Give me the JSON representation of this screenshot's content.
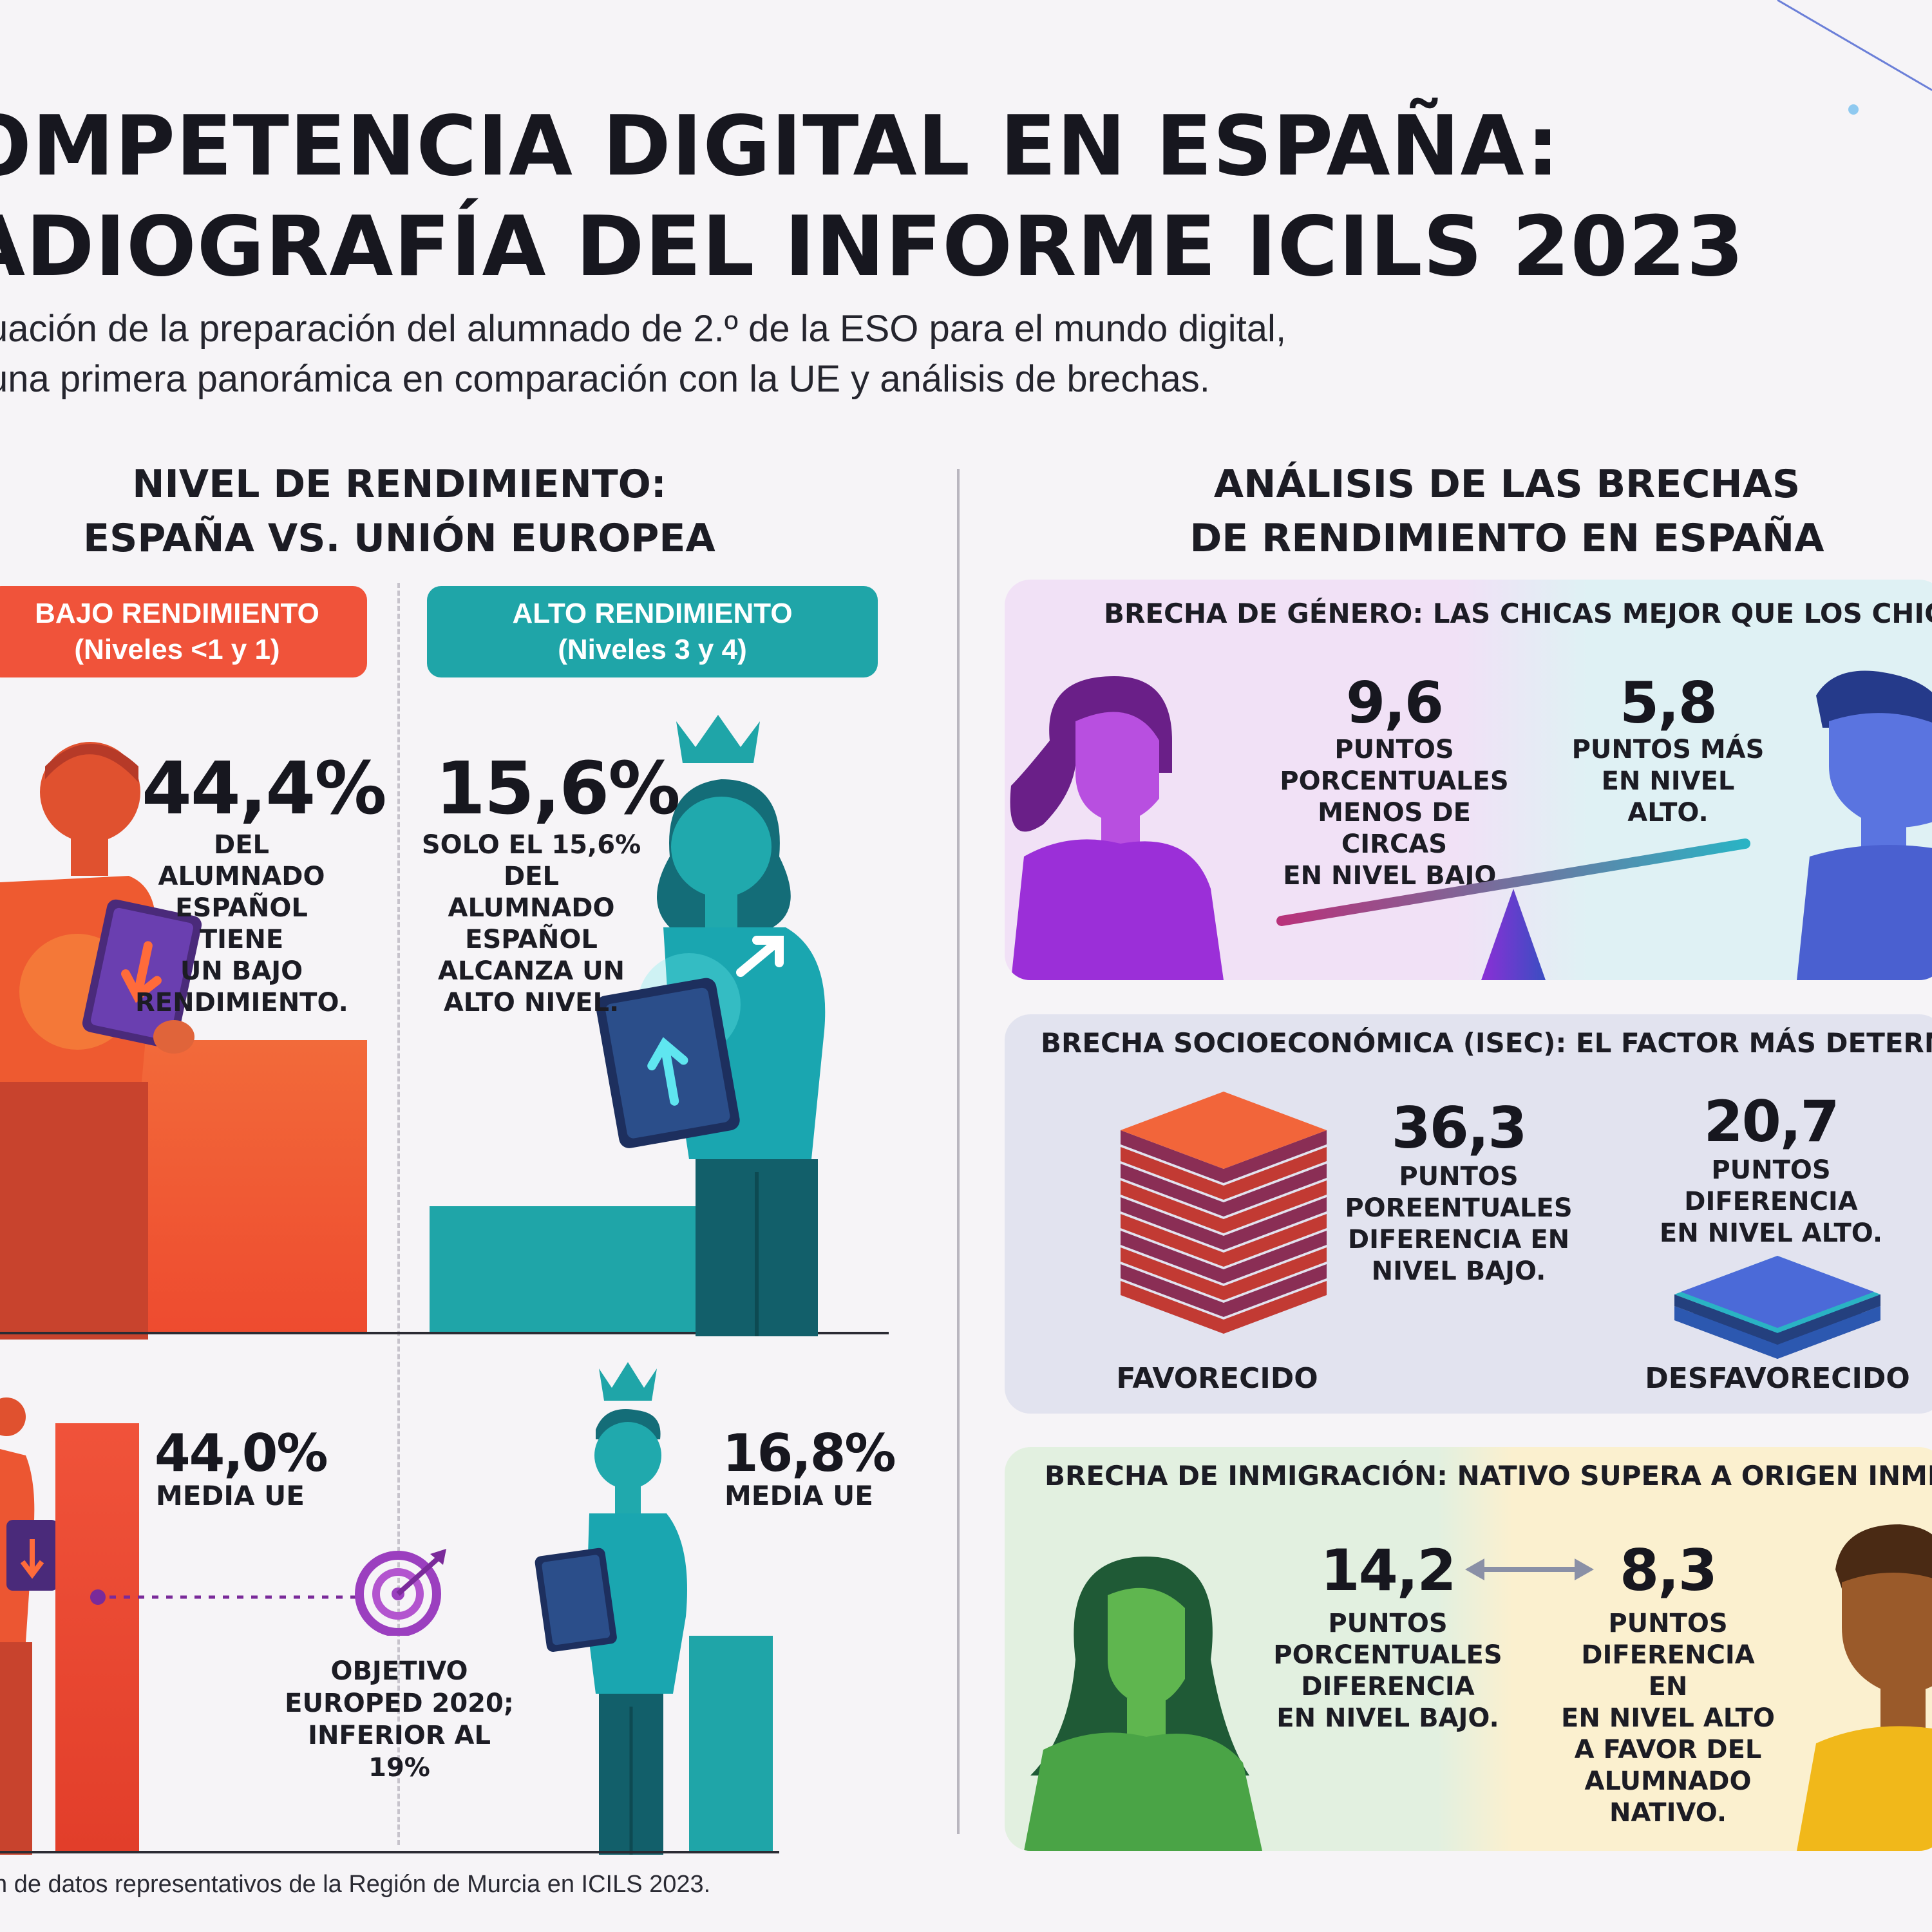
{
  "header": {
    "title_line1": "OMPETENCIA DIGITAL EN ESPAÑA:",
    "title_line2": "ADIOGRAFÍA DEL INFORME ICILS 2023",
    "subtitle_line1": "uación de la preparación del alumnado de 2.º de la ESO para el mundo digital,",
    "subtitle_line2": "una primera panorámica en comparación con la UE y análisis de brechas."
  },
  "left": {
    "title_line1": "NIVEL DE RENDIMIENTO:",
    "title_line2": "ESPAÑA VS. UNIÓN EUROPEA",
    "low_badge": {
      "line1": "BAJO RENDIMIENTO",
      "line2": "(Niveles <1 y 1)",
      "color": "#f0533a"
    },
    "high_badge": {
      "line1": "ALTO RENDIMIENTO",
      "line2": "(Niveles 3 y 4)",
      "color": "#1fa5a8"
    },
    "spain_low": {
      "value": "44,4%",
      "text": [
        "DEL ALUMNADO",
        "ESPAÑOL TIENE",
        "UN BAJO",
        "RENDIMIENTO."
      ]
    },
    "spain_high": {
      "value": "15,6%",
      "text": [
        "SOLO EL 15,6%",
        "DEL ALUMNADO",
        "ESPAÑOL",
        "ALCANZA UN",
        "ALTO NIVEL."
      ]
    },
    "eu_low": {
      "value": "44,0%",
      "label": "MEDIA UE"
    },
    "eu_high": {
      "value": "16,8%",
      "label": "MEDIA UE"
    },
    "target": {
      "text": [
        "OBJETIVO",
        "EUROPED 2020;",
        "INFERIOR AL 19%"
      ]
    }
  },
  "right": {
    "title_line1": "ANÁLISIS DE LAS BRECHAS",
    "title_line2": "DE RENDIMIENTO EN ESPAÑA",
    "gender": {
      "title": "BRECHA DE GÉNERO: LAS CHICAS MEJOR QUE LOS CHICOS",
      "girls_value": "9,6",
      "girls_text": [
        "PUNTOS",
        "PORCENTUALES",
        "MENOS DE CIRCAS",
        "EN NIVEL BAJO."
      ],
      "boys_value": "5,8",
      "boys_text": [
        "PUNTOS MÁS",
        "EN NIVEL",
        "ALTO."
      ]
    },
    "socio": {
      "title": "BRECHA SOCIOECONÓMICA (ISEC): EL FACTOR MÁS DETERMINANTE",
      "low_value": "36,3",
      "low_text": [
        "PUNTOS",
        "POREENTUALES",
        "DIFERENCIA EN",
        "NIVEL BAJO."
      ],
      "high_value": "20,7",
      "high_text": [
        "PUNTOS DIFERENCIA",
        "EN NIVEL ALTO."
      ],
      "favored_label": "FAVORECIDO",
      "unfavored_label": "DESFAVORECIDO"
    },
    "immigration": {
      "title": "BRECHA DE INMIGRACIÓN: NATIVO SUPERA A ORIGEN INMIGRANTE",
      "left_value": "14,2",
      "left_text": [
        "PUNTOS",
        "PORCENTUALES",
        "DIFERENCIA",
        "EN NIVEL BAJO."
      ],
      "right_value": "8,3",
      "right_text": [
        "PUNTOS",
        "DIFERENCIA",
        "EN",
        "EN NIVEL ALTO",
        "A FAVOR DEL",
        "ALUMNADO",
        "NATIVO."
      ]
    }
  },
  "footer": {
    "note": "n de datos representativos de la Región de Murcia en ICILS 2023."
  },
  "colors": {
    "orange": "#f0533a",
    "teal": "#1fa5a8",
    "purple": "#8b2fd6",
    "gender_left_bg": "#f1e1f6",
    "gender_right_bg": "#dff1f4",
    "socio_bg": "#e2e3ef",
    "immig_left_bg": "#e2f0e0",
    "immig_right_bg": "#fbf0cf"
  }
}
